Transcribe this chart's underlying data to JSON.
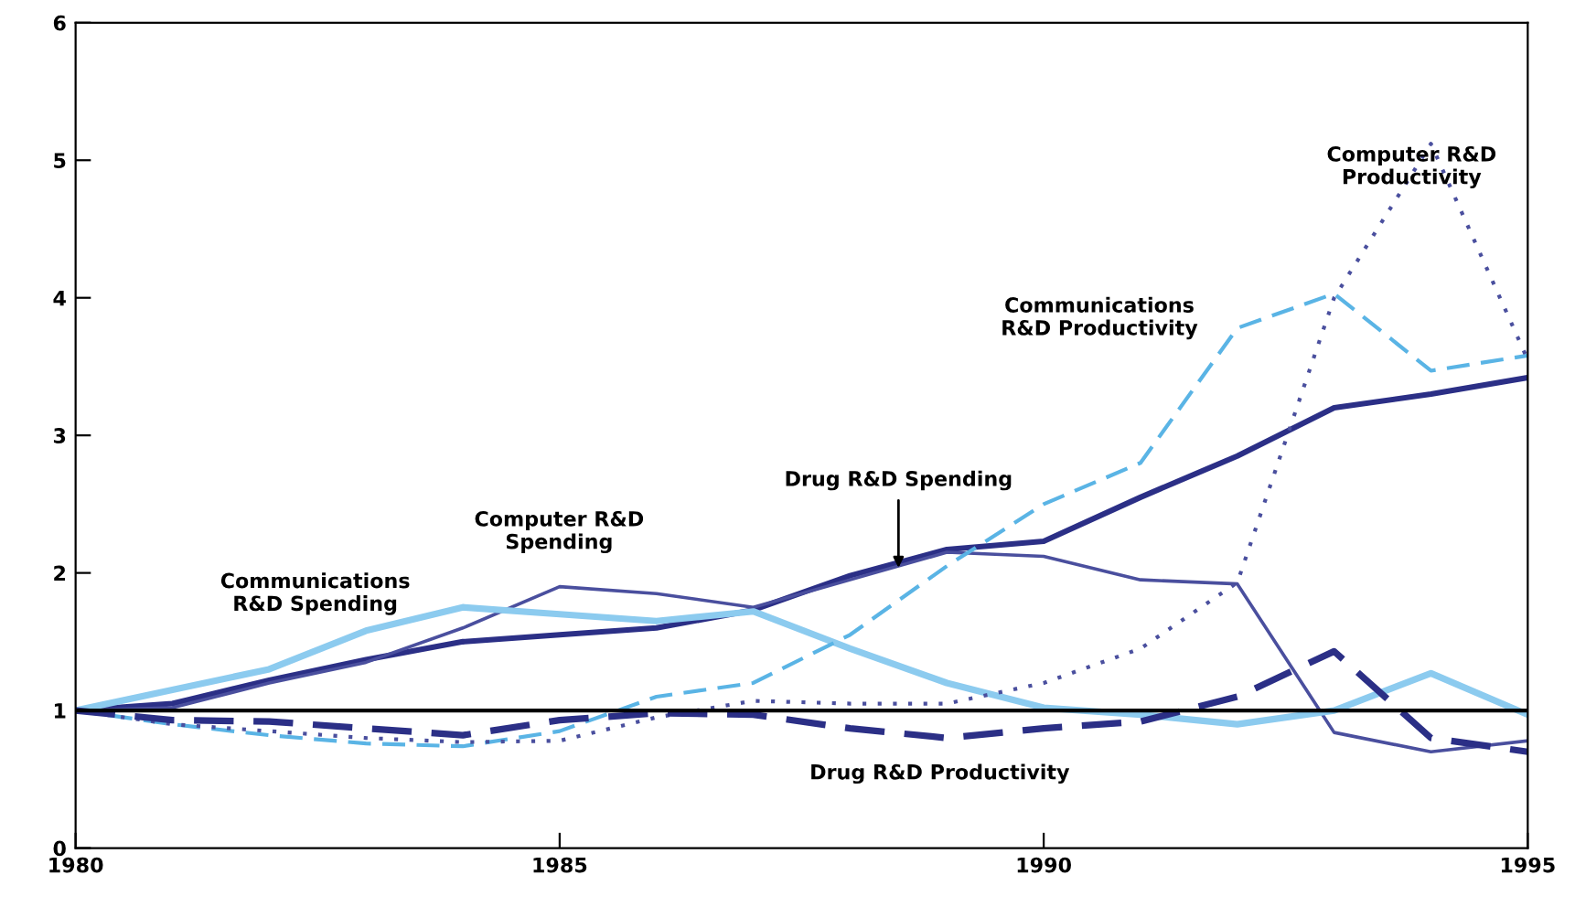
{
  "chart_data": {
    "type": "line",
    "x": [
      1980,
      1981,
      1982,
      1983,
      1984,
      1985,
      1986,
      1987,
      1988,
      1989,
      1990,
      1991,
      1992,
      1993,
      1994,
      1995
    ],
    "series": [
      {
        "color": "#2b2f86",
        "line_style": "solid",
        "values": [
          1,
          1.05,
          1.22,
          1.37,
          1.5,
          1.55,
          1.6,
          1.73,
          1.98,
          2.17,
          2.23,
          2.55,
          2.85,
          3.2,
          3.3,
          3.42
        ]
      },
      {
        "color": "#4a4f9e",
        "line_style": "solid",
        "values": [
          1,
          1.02,
          1.2,
          1.35,
          1.6,
          1.9,
          1.85,
          1.75,
          1.95,
          2.15,
          2.12,
          1.95,
          1.92,
          0.84,
          0.7,
          0.78
        ]
      },
      {
        "color": "#8ccbef",
        "line_style": "solid",
        "values": [
          1,
          1.15,
          1.3,
          1.58,
          1.75,
          1.7,
          1.65,
          1.72,
          1.45,
          1.2,
          1.02,
          0.97,
          0.9,
          1.0,
          1.27,
          0.97
        ]
      },
      {
        "color": "#5ab4e5",
        "line_style": "dashed",
        "values": [
          1,
          0.9,
          0.82,
          0.76,
          0.74,
          0.85,
          1.1,
          1.2,
          1.55,
          2.05,
          2.5,
          2.8,
          3.78,
          4.03,
          3.47,
          3.58
        ]
      },
      {
        "color": "#4a4f9e",
        "line_style": "dotted",
        "values": [
          1,
          0.9,
          0.85,
          0.8,
          0.77,
          0.78,
          0.95,
          1.07,
          1.05,
          1.05,
          1.2,
          1.45,
          1.93,
          4.0,
          5.12,
          3.55
        ]
      },
      {
        "color": "#2b2f86",
        "line_style": "dashed",
        "values": [
          1,
          0.93,
          0.92,
          0.87,
          0.82,
          0.93,
          0.98,
          0.97,
          0.87,
          0.8,
          0.87,
          0.92,
          1.1,
          1.43,
          0.8,
          0.7
        ]
      }
    ],
    "annotations": [
      "Communications\nR&D Spending",
      "Computer R&D\nSpending",
      {
        "text": "Drug R&D Spending",
        "x": 1988.5,
        "y": 2.0
      },
      "Communications\nR&D Productivity",
      {
        "text": "Computer R&D\nProductivity",
        "x": 1993.8,
        "y": 4.95
      },
      "Drug R&D Productivity"
    ],
    "ref_lines": [
      {
        "axis": "y",
        "value": 1,
        "color": "#000000"
      }
    ],
    "xlim": [
      1980,
      1995
    ],
    "ylim": [
      0,
      6
    ],
    "xticks": [
      1980,
      1985,
      1990,
      1995
    ],
    "yticks": [
      0,
      1,
      2,
      3,
      4,
      5,
      6
    ],
    "grid": false,
    "legend": false
  }
}
